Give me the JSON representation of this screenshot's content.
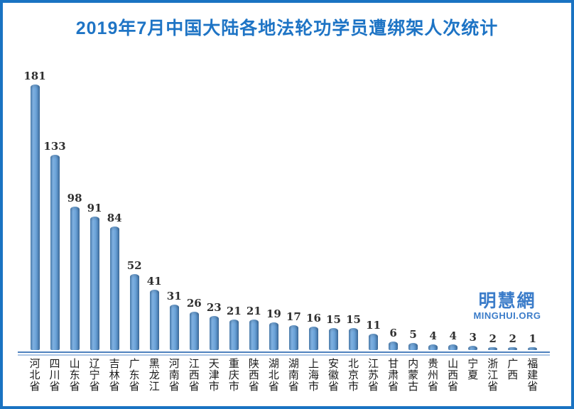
{
  "page": {
    "border_color": "#1a73c2",
    "background_color": "#ffffff"
  },
  "title": {
    "text": "2019年7月中国大陆各地法轮功学员遭绑架人次统计",
    "color": "#1e74c5"
  },
  "watermark": {
    "logo_text": "明慧網",
    "site_text": "MINGHUI.ORG",
    "color": "#3b7cc9"
  },
  "chart_data": {
    "type": "bar",
    "title": "2019年7月中国大陆各地法轮功学员遭绑架人次统计",
    "categories": [
      "河北省",
      "四川省",
      "山东省",
      "辽宁省",
      "吉林省",
      "广东省",
      "黑龙江",
      "河南省",
      "江西省",
      "天津市",
      "重庆市",
      "陕西省",
      "湖北省",
      "湖南省",
      "上海市",
      "安徽省",
      "北京市",
      "江苏省",
      "甘肃省",
      "内蒙古",
      "贵州省",
      "山西省",
      "宁夏",
      "浙江省",
      "广西",
      "福建省"
    ],
    "values": [
      181,
      133,
      98,
      91,
      84,
      52,
      41,
      31,
      26,
      23,
      21,
      21,
      19,
      17,
      16,
      15,
      15,
      11,
      6,
      5,
      4,
      4,
      3,
      2,
      2,
      1
    ],
    "xlabel": "",
    "ylabel": "",
    "ylim": [
      0,
      200
    ],
    "grid": false,
    "legend": false,
    "value_labels_shown": true,
    "bar_color": "#6aa2d8",
    "bar_gradient": [
      "#4e80b2",
      "#7fb0e0",
      "#3e6d9e"
    ],
    "axis_line_color": "#4f81bd",
    "value_label_color": "#303030",
    "category_label_orientation": "vertical"
  }
}
